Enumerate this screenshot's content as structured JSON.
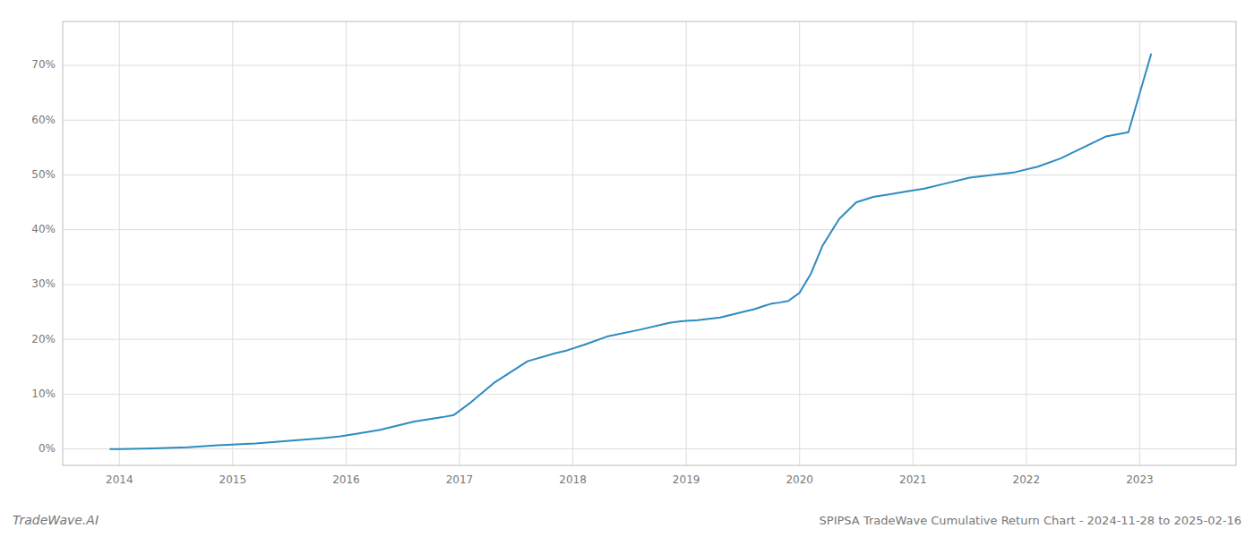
{
  "chart_data": {
    "type": "line",
    "title": "SPIPSA TradeWave Cumulative Return Chart - 2024-11-28 to 2025-02-16",
    "annotations": [
      "TradeWave.AI"
    ],
    "color": "#2d8bc0",
    "grid": true,
    "xlim": [
      2013.5,
      2023.85
    ],
    "xticks": [
      2014,
      2015,
      2016,
      2017,
      2018,
      2019,
      2020,
      2021,
      2022,
      2023
    ],
    "ylim": [
      -3,
      78
    ],
    "yticks": [
      {
        "value": 0,
        "label": "0%"
      },
      {
        "value": 10,
        "label": "10%"
      },
      {
        "value": 20,
        "label": "20%"
      },
      {
        "value": 30,
        "label": "30%"
      },
      {
        "value": 40,
        "label": "40%"
      },
      {
        "value": 50,
        "label": "50%"
      },
      {
        "value": 60,
        "label": "60%"
      },
      {
        "value": 70,
        "label": "70%"
      }
    ],
    "x": [
      2013.92,
      2014.0,
      2014.3,
      2014.6,
      2014.9,
      2015.2,
      2015.5,
      2015.8,
      2015.95,
      2016.1,
      2016.3,
      2016.6,
      2016.85,
      2016.95,
      2017.1,
      2017.3,
      2017.6,
      2017.85,
      2017.95,
      2018.1,
      2018.3,
      2018.6,
      2018.85,
      2018.95,
      2019.1,
      2019.3,
      2019.5,
      2019.6,
      2019.7,
      2019.75,
      2019.82,
      2019.9,
      2020.0,
      2020.1,
      2020.2,
      2020.35,
      2020.5,
      2020.65,
      2020.8,
      2020.95,
      2021.1,
      2021.3,
      2021.5,
      2021.7,
      2021.9,
      2022.1,
      2022.3,
      2022.5,
      2022.7,
      2022.9,
      2023.1
    ],
    "values": [
      0.0,
      0.0,
      0.1,
      0.3,
      0.7,
      1.0,
      1.5,
      2.0,
      2.3,
      2.8,
      3.5,
      5.0,
      5.8,
      6.2,
      8.5,
      12.0,
      16.0,
      17.5,
      18.0,
      19.0,
      20.5,
      21.8,
      23.0,
      23.3,
      23.5,
      24.0,
      25.0,
      25.5,
      26.2,
      26.5,
      26.7,
      27.0,
      28.5,
      32.0,
      37.0,
      42.0,
      45.0,
      46.0,
      46.5,
      47.0,
      47.5,
      48.5,
      49.5,
      50.0,
      50.5,
      51.5,
      53.0,
      55.0,
      57.0,
      57.8,
      72.0
    ]
  }
}
